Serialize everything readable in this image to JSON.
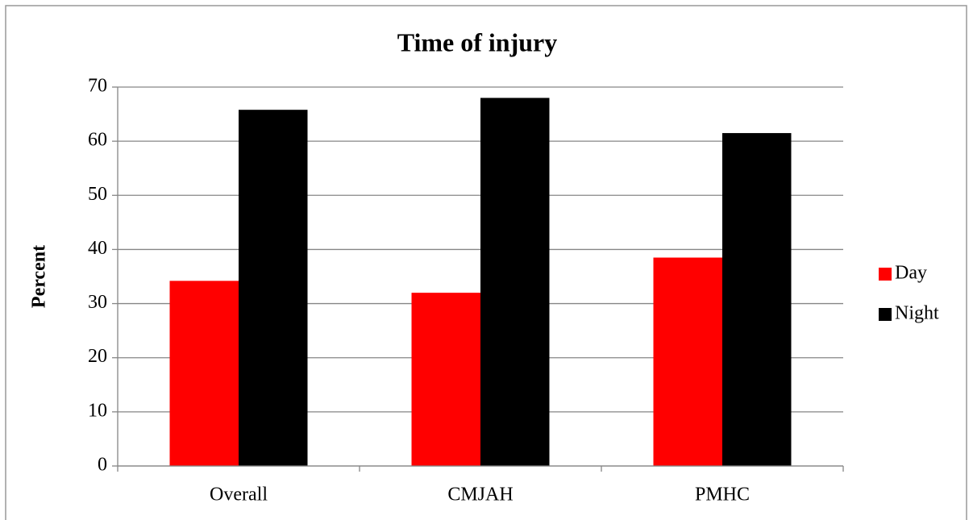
{
  "chart_data": {
    "type": "bar",
    "title": "Time of injury",
    "y_label": "Percent",
    "categories": [
      "Overall",
      "CMJAH",
      "PMHC"
    ],
    "series": [
      {
        "name": "Day",
        "color": "#ff0000",
        "values": [
          34.2,
          32,
          38.5
        ]
      },
      {
        "name": "Night",
        "color": "#000000",
        "values": [
          65.8,
          68,
          61.5
        ]
      }
    ],
    "ylim": [
      0,
      70
    ],
    "yticks": [
      0,
      10,
      20,
      30,
      40,
      50,
      60,
      70
    ],
    "grid": true,
    "legend": "right"
  }
}
